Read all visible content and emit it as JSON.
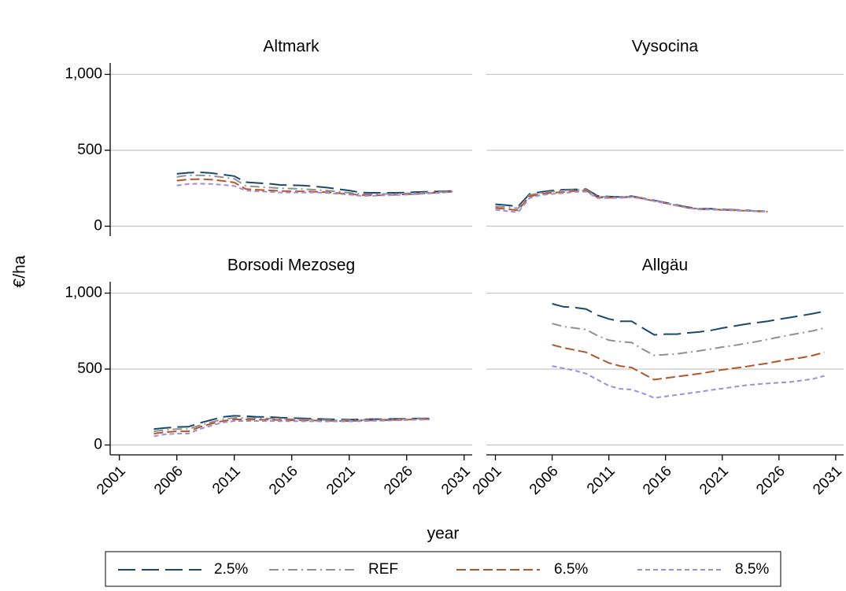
{
  "axis_labels": {
    "x": "year",
    "y": "€/ha"
  },
  "legend": {
    "position": "bottom"
  },
  "chart_data": [
    {
      "type": "line",
      "title": "Altmark",
      "x": [
        2006,
        2007,
        2008,
        2009,
        2010,
        2011,
        2012,
        2013,
        2014,
        2015,
        2016,
        2017,
        2018,
        2019,
        2020,
        2021,
        2022,
        2023,
        2024,
        2025,
        2026,
        2027,
        2028,
        2029,
        2030
      ],
      "series": [
        {
          "name": "2.5%",
          "color": "#1a476f",
          "linestyle": "longdash",
          "values": [
            345,
            352,
            355,
            350,
            340,
            330,
            290,
            285,
            280,
            272,
            270,
            268,
            262,
            255,
            245,
            235,
            222,
            220,
            220,
            220,
            222,
            225,
            228,
            230,
            232
          ]
        },
        {
          "name": "REF",
          "color": "#90908f",
          "linestyle": "dashdot",
          "values": [
            325,
            335,
            335,
            332,
            322,
            312,
            265,
            260,
            255,
            250,
            248,
            245,
            240,
            235,
            228,
            220,
            212,
            210,
            212,
            214,
            216,
            218,
            222,
            226,
            230
          ]
        },
        {
          "name": "6.5%",
          "color": "#b5562a",
          "linestyle": "dash",
          "values": [
            300,
            308,
            310,
            307,
            298,
            288,
            245,
            240,
            236,
            232,
            230,
            230,
            227,
            224,
            218,
            212,
            205,
            203,
            205,
            207,
            210,
            213,
            218,
            222,
            228
          ]
        },
        {
          "name": "8.5%",
          "color": "#9d8fd9",
          "linestyle": "shortdash",
          "values": [
            268,
            278,
            280,
            278,
            272,
            265,
            235,
            230,
            226,
            222,
            222,
            222,
            222,
            220,
            214,
            208,
            200,
            200,
            203,
            205,
            208,
            212,
            216,
            220,
            226
          ]
        }
      ],
      "xlim": [
        2000.2,
        2031.7
      ],
      "ylim": [
        -65,
        1075
      ],
      "yticks": [
        0,
        500,
        {
          "value": 1000,
          "label": "1,000"
        }
      ],
      "grid": true
    },
    {
      "type": "line",
      "title": "Vysocina",
      "x": [
        2001,
        2002,
        2003,
        2004,
        2005,
        2006,
        2007,
        2008,
        2009,
        2010,
        2011,
        2012,
        2013,
        2014,
        2015,
        2016,
        2017,
        2018,
        2019,
        2020,
        2021,
        2022,
        2023,
        2024,
        2025
      ],
      "series": [
        {
          "name": "2.5%",
          "color": "#1a476f",
          "linestyle": "longdash",
          "values": [
            145,
            138,
            130,
            212,
            225,
            235,
            240,
            242,
            245,
            200,
            195,
            192,
            198,
            185,
            170,
            155,
            140,
            125,
            115,
            115,
            110,
            108,
            105,
            100,
            100
          ]
        },
        {
          "name": "REF",
          "color": "#90908f",
          "linestyle": "dashdot",
          "values": [
            130,
            125,
            118,
            205,
            220,
            228,
            235,
            238,
            240,
            195,
            192,
            190,
            196,
            183,
            168,
            153,
            138,
            123,
            113,
            113,
            108,
            106,
            103,
            100,
            98
          ]
        },
        {
          "name": "6.5%",
          "color": "#b5562a",
          "linestyle": "dash",
          "values": [
            120,
            112,
            105,
            195,
            212,
            220,
            225,
            232,
            235,
            190,
            188,
            188,
            194,
            181,
            166,
            151,
            136,
            121,
            111,
            111,
            107,
            105,
            102,
            98,
            96
          ]
        },
        {
          "name": "8.5%",
          "color": "#9d8fd9",
          "linestyle": "shortdash",
          "values": [
            108,
            100,
            92,
            185,
            205,
            212,
            218,
            225,
            228,
            185,
            185,
            186,
            192,
            180,
            165,
            150,
            135,
            120,
            110,
            110,
            106,
            104,
            101,
            98,
            95
          ]
        }
      ],
      "xlim": [
        2000.2,
        2031.7
      ],
      "ylim": [
        -65,
        1075
      ],
      "yticks": [
        0,
        500,
        1000
      ],
      "grid": true
    },
    {
      "type": "line",
      "title": "Borsodi Mezoseg",
      "x": [
        2004,
        2005,
        2006,
        2007,
        2008,
        2009,
        2010,
        2011,
        2012,
        2013,
        2014,
        2015,
        2016,
        2017,
        2018,
        2019,
        2020,
        2021,
        2022,
        2023,
        2024,
        2025,
        2026,
        2027,
        2028
      ],
      "series": [
        {
          "name": "2.5%",
          "color": "#1a476f",
          "linestyle": "longdash",
          "values": [
            105,
            112,
            118,
            120,
            145,
            165,
            185,
            192,
            190,
            185,
            185,
            180,
            178,
            175,
            173,
            170,
            168,
            167,
            168,
            170,
            170,
            172,
            173,
            175,
            175
          ]
        },
        {
          "name": "REF",
          "color": "#90908f",
          "linestyle": "dashdot",
          "values": [
            90,
            98,
            105,
            105,
            130,
            150,
            170,
            178,
            178,
            175,
            175,
            172,
            170,
            168,
            167,
            165,
            163,
            163,
            164,
            166,
            167,
            168,
            170,
            172,
            173
          ]
        },
        {
          "name": "6.5%",
          "color": "#b5562a",
          "linestyle": "dash",
          "values": [
            75,
            85,
            90,
            90,
            118,
            140,
            158,
            168,
            168,
            166,
            166,
            165,
            163,
            162,
            161,
            160,
            158,
            158,
            160,
            162,
            163,
            165,
            167,
            169,
            171
          ]
        },
        {
          "name": "8.5%",
          "color": "#9d8fd9",
          "linestyle": "shortdash",
          "values": [
            58,
            70,
            75,
            75,
            105,
            128,
            148,
            158,
            158,
            158,
            158,
            157,
            157,
            156,
            156,
            155,
            155,
            155,
            157,
            159,
            160,
            162,
            164,
            166,
            168
          ]
        }
      ],
      "xlim": [
        2000.2,
        2031.7
      ],
      "ylim": [
        -65,
        1075
      ],
      "xticks": [
        2001,
        2006,
        2011,
        2016,
        2021,
        2026,
        2031
      ],
      "yticks": [
        0,
        500,
        {
          "value": 1000,
          "label": "1,000"
        }
      ],
      "grid": true
    },
    {
      "type": "line",
      "title": "Allgäu",
      "x": [
        2006,
        2007,
        2008,
        2009,
        2010,
        2011,
        2012,
        2013,
        2014,
        2015,
        2016,
        2017,
        2018,
        2019,
        2020,
        2021,
        2022,
        2023,
        2024,
        2025,
        2026,
        2027,
        2028,
        2029,
        2030
      ],
      "series": [
        {
          "name": "2.5%",
          "color": "#1a476f",
          "linestyle": "longdash",
          "values": [
            930,
            910,
            905,
            895,
            855,
            830,
            815,
            815,
            770,
            725,
            730,
            730,
            738,
            745,
            755,
            770,
            782,
            795,
            805,
            815,
            828,
            840,
            852,
            865,
            880
          ]
        },
        {
          "name": "REF",
          "color": "#90908f",
          "linestyle": "dashdot",
          "values": [
            800,
            780,
            770,
            760,
            720,
            690,
            680,
            675,
            630,
            590,
            595,
            600,
            610,
            620,
            632,
            645,
            655,
            668,
            680,
            695,
            710,
            725,
            738,
            752,
            770
          ]
        },
        {
          "name": "6.5%",
          "color": "#b5562a",
          "linestyle": "dash",
          "values": [
            660,
            640,
            625,
            610,
            575,
            540,
            520,
            510,
            470,
            430,
            440,
            450,
            460,
            470,
            482,
            495,
            505,
            515,
            527,
            538,
            552,
            565,
            575,
            590,
            610
          ]
        },
        {
          "name": "8.5%",
          "color": "#9d8fd9",
          "linestyle": "shortdash",
          "values": [
            520,
            505,
            490,
            470,
            430,
            390,
            370,
            365,
            340,
            310,
            320,
            330,
            340,
            350,
            362,
            372,
            382,
            392,
            400,
            405,
            410,
            415,
            425,
            435,
            455
          ]
        }
      ],
      "xlim": [
        2000.2,
        2031.7
      ],
      "ylim": [
        -65,
        1075
      ],
      "xticks": [
        2001,
        2006,
        2011,
        2016,
        2021,
        2026,
        2031
      ],
      "yticks": [
        0,
        500,
        1000
      ],
      "grid": true
    }
  ]
}
